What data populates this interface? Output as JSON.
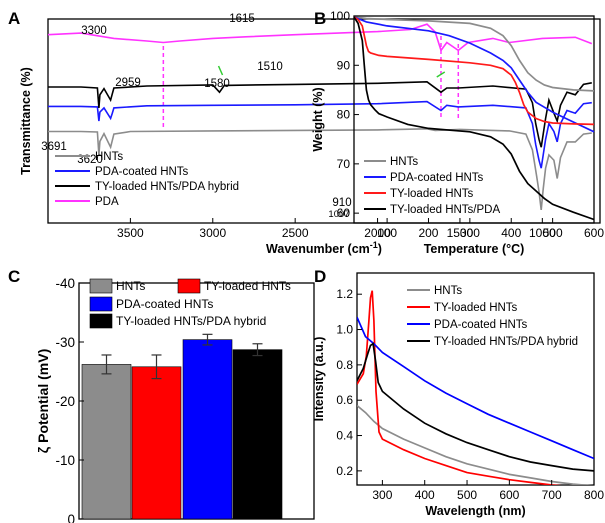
{
  "chart_data": [
    {
      "panel": "A",
      "type": "line",
      "xlabel": "Wavenumber (cm",
      "xlabel_sup": "-1",
      "xlabel_close": ")",
      "ylabel": "Transmittance (%)",
      "xlim": [
        4000,
        650
      ],
      "x_reversed": true,
      "x_ticks": [
        "3500",
        "3000",
        "2500",
        "2000",
        "1500",
        "1000"
      ],
      "y_ticks_shown": false,
      "legend_position": "bottom-left",
      "series": [
        {
          "name": "HNTs",
          "color": "#8c8c8c",
          "x": [
            4000,
            3800,
            3700,
            3691,
            3685,
            3660,
            3620,
            3610,
            3600,
            3500,
            3000,
            2500,
            2000,
            1700,
            1650,
            1500,
            1200,
            1100,
            1060,
            1035,
            1020,
            1007,
            995,
            980,
            960,
            930,
            910,
            890,
            850,
            800,
            750,
            700
          ],
          "y": [
            10.5,
            10.5,
            10.4,
            6.0,
            8.6,
            10.1,
            7.5,
            8.8,
            10.0,
            10.5,
            10.6,
            10.7,
            10.8,
            11.0,
            10.7,
            10.9,
            10.6,
            10.0,
            7.0,
            2.0,
            -1.0,
            -4.5,
            -0.5,
            3.5,
            6.0,
            5.0,
            1.5,
            5.5,
            8.5,
            8.5,
            10.0,
            10.2
          ]
        },
        {
          "name": "PDA-coated HNTs",
          "color": "#1a1aff",
          "x": [
            4000,
            3800,
            3700,
            3691,
            3685,
            3660,
            3620,
            3610,
            3600,
            3400,
            3000,
            2500,
            2000,
            1700,
            1615,
            1580,
            1510,
            1300,
            1100,
            1060,
            1040,
            1020,
            1007,
            995,
            980,
            960,
            930,
            910,
            890,
            850,
            800,
            750,
            700
          ],
          "y": [
            15.3,
            15.3,
            15.2,
            12.5,
            14.2,
            15.0,
            13.0,
            14.0,
            15.0,
            15.4,
            15.5,
            15.6,
            15.8,
            16.2,
            14.5,
            15.5,
            15.2,
            15.5,
            15.0,
            12.0,
            8.0,
            5.0,
            3.5,
            6.0,
            9.0,
            12.0,
            10.5,
            8.5,
            12.0,
            14.5,
            14.0,
            15.8,
            16.0
          ]
        },
        {
          "name": "TY-loaded HNTs/PDA hybrid",
          "color": "#000000",
          "x": [
            4000,
            3800,
            3700,
            3691,
            3685,
            3660,
            3620,
            3610,
            3600,
            3400,
            3000,
            2959,
            2930,
            2500,
            2000,
            1700,
            1615,
            1580,
            1510,
            1300,
            1100,
            1060,
            1040,
            1020,
            1007,
            995,
            980,
            960,
            930,
            910,
            890,
            850,
            800,
            750,
            700
          ],
          "y": [
            19.0,
            19.0,
            18.8,
            15.0,
            17.5,
            18.7,
            16.5,
            17.7,
            18.8,
            19.2,
            19.4,
            18.0,
            19.3,
            19.5,
            19.7,
            20.0,
            18.0,
            18.8,
            18.8,
            19.2,
            18.6,
            16.0,
            12.0,
            9.0,
            7.5,
            10.0,
            13.0,
            16.5,
            14.0,
            12.5,
            15.5,
            18.0,
            17.5,
            19.5,
            19.8
          ]
        },
        {
          "name": "PDA",
          "color": "#ff33ff",
          "x": [
            4000,
            3800,
            3600,
            3400,
            3300,
            3200,
            3000,
            2800,
            2500,
            2000,
            1800,
            1700,
            1650,
            1615,
            1580,
            1510,
            1450,
            1300,
            1200,
            1000,
            800,
            700
          ],
          "y": [
            29.0,
            29.3,
            28.3,
            27.8,
            27.5,
            27.8,
            28.3,
            28.6,
            29.0,
            29.6,
            30.0,
            31.0,
            29.5,
            26.0,
            27.5,
            26.0,
            27.5,
            28.3,
            27.5,
            28.3,
            28.5,
            27.3
          ]
        }
      ],
      "annotations": [
        {
          "text": "3300",
          "x": 3300
        },
        {
          "text": "2959",
          "x": 2959
        },
        {
          "text": "1615",
          "x": 1615
        },
        {
          "text": "1510",
          "x": 1510
        },
        {
          "text": "1580",
          "x": 1580
        },
        {
          "text": "3691",
          "x": 3691
        },
        {
          "text": "3620",
          "x": 3620
        },
        {
          "text": "910",
          "x": 910
        },
        {
          "text": "1007",
          "x": 1007
        }
      ]
    },
    {
      "panel": "B",
      "type": "line",
      "xlabel": "Temperature (",
      "xlabel_unit": "°C)",
      "ylabel": "Weight (%)",
      "xlim": [
        20,
        600
      ],
      "ylim": [
        58,
        100
      ],
      "x_ticks": [
        "100",
        "200",
        "300",
        "400",
        "500",
        "600"
      ],
      "y_ticks": [
        "60",
        "70",
        "80",
        "90",
        "100"
      ],
      "legend_position": "bottom-left",
      "series": [
        {
          "name": "HNTs",
          "color": "#8c8c8c",
          "x": [
            20,
            50,
            100,
            200,
            300,
            350,
            380,
            400,
            420,
            440,
            460,
            480,
            500,
            550,
            600
          ],
          "y": [
            99.8,
            99.5,
            99.3,
            99.0,
            98.5,
            97.5,
            96.0,
            94.0,
            91.0,
            88.5,
            87.0,
            86.0,
            85.5,
            85.0,
            84.8
          ]
        },
        {
          "name": "PDA-coated HNTs",
          "color": "#1a1aff",
          "x": [
            20,
            50,
            100,
            200,
            250,
            300,
            350,
            380,
            400,
            420,
            440,
            460,
            480,
            500,
            550,
            600
          ],
          "y": [
            99.8,
            98.8,
            98.0,
            97.0,
            96.0,
            94.5,
            92.5,
            91.0,
            89.5,
            87.0,
            84.5,
            82.5,
            81.5,
            80.5,
            78.5,
            76.5
          ]
        },
        {
          "name": "TY-loaded HNTs",
          "color": "#ff1a1a",
          "x": [
            20,
            30,
            40,
            50,
            55,
            60,
            80,
            100,
            200,
            300,
            350,
            380,
            400,
            410,
            420,
            430,
            440,
            460,
            480,
            500,
            550,
            600
          ],
          "y": [
            99.8,
            99.3,
            98.0,
            94.0,
            92.8,
            92.5,
            92.0,
            91.8,
            91.2,
            90.5,
            90.0,
            89.3,
            88.0,
            86.5,
            84.5,
            82.0,
            80.5,
            79.2,
            78.6,
            78.3,
            78.1,
            78.0
          ]
        },
        {
          "name": "TY-loaded HNTs/PDA",
          "color": "#000000",
          "x": [
            20,
            30,
            40,
            45,
            50,
            55,
            60,
            70,
            80,
            100,
            150,
            200,
            300,
            350,
            380,
            400,
            420,
            440,
            460,
            480,
            500,
            550,
            600
          ],
          "y": [
            99.8,
            98.5,
            95.0,
            90.0,
            85.0,
            83.0,
            82.0,
            81.0,
            80.2,
            79.5,
            78.0,
            77.2,
            76.5,
            75.5,
            74.0,
            72.0,
            68.5,
            66.0,
            64.5,
            63.0,
            61.8,
            60.2,
            58.7
          ]
        }
      ]
    },
    {
      "panel": "C",
      "type": "bar",
      "ylabel": "ζ Potential (mV)",
      "ylim": [
        0,
        -40
      ],
      "y_ticks": [
        "0",
        "-10",
        "-20",
        "-30",
        "-40"
      ],
      "legend_position": "top",
      "categories": [
        "HNTs",
        "TY-loaded HNTs",
        "PDA-coated HNTs",
        "TY-loaded HNTs/PDA hybrid"
      ],
      "values": [
        -26.2,
        -25.8,
        -30.4,
        -28.7
      ],
      "errors": [
        1.6,
        2.0,
        0.9,
        1.0
      ],
      "colors": [
        "#8c8c8c",
        "#ff0000",
        "#0000ff",
        "#000000"
      ]
    },
    {
      "panel": "D",
      "type": "line",
      "xlabel": "Wavelength (nm)",
      "ylabel": "Intensity (a.u.)",
      "xlim": [
        240,
        800
      ],
      "ylim": [
        0.12,
        1.32
      ],
      "x_ticks": [
        "300",
        "400",
        "500",
        "600",
        "700",
        "800"
      ],
      "y_ticks": [
        "0.2",
        "0.4",
        "0.6",
        "0.8",
        "1.0",
        "1.2"
      ],
      "legend_position": "top-right",
      "series": [
        {
          "name": "HNTs",
          "color": "#8c8c8c",
          "x": [
            240,
            260,
            280,
            300,
            350,
            400,
            450,
            500,
            550,
            600,
            650,
            700,
            750,
            800
          ],
          "y": [
            0.57,
            0.53,
            0.48,
            0.44,
            0.38,
            0.33,
            0.28,
            0.24,
            0.21,
            0.18,
            0.16,
            0.14,
            0.125,
            0.115
          ]
        },
        {
          "name": "TY-loaded HNTs",
          "color": "#ff0000",
          "x": [
            240,
            255,
            262,
            268,
            272,
            276,
            280,
            285,
            292,
            300,
            350,
            400,
            450,
            500,
            550,
            600,
            650,
            700,
            750,
            800
          ],
          "y": [
            0.69,
            0.75,
            0.85,
            1.05,
            1.18,
            1.22,
            1.05,
            0.65,
            0.42,
            0.38,
            0.32,
            0.27,
            0.23,
            0.19,
            0.17,
            0.15,
            0.135,
            0.12,
            0.11,
            0.105
          ]
        },
        {
          "name": "PDA-coated HNTs",
          "color": "#0000ff",
          "x": [
            240,
            260,
            280,
            300,
            350,
            400,
            450,
            500,
            550,
            600,
            650,
            700,
            750,
            800
          ],
          "y": [
            1.07,
            0.96,
            0.92,
            0.87,
            0.79,
            0.71,
            0.64,
            0.58,
            0.52,
            0.47,
            0.42,
            0.37,
            0.32,
            0.27
          ]
        },
        {
          "name": "TY-loaded HNTs/PDA hybrid",
          "color": "#000000",
          "x": [
            240,
            255,
            265,
            272,
            278,
            284,
            290,
            300,
            350,
            400,
            450,
            500,
            550,
            600,
            650,
            700,
            750,
            800
          ],
          "y": [
            0.71,
            0.78,
            0.86,
            0.91,
            0.92,
            0.82,
            0.7,
            0.65,
            0.55,
            0.47,
            0.41,
            0.36,
            0.32,
            0.28,
            0.25,
            0.23,
            0.21,
            0.2
          ]
        }
      ]
    }
  ]
}
